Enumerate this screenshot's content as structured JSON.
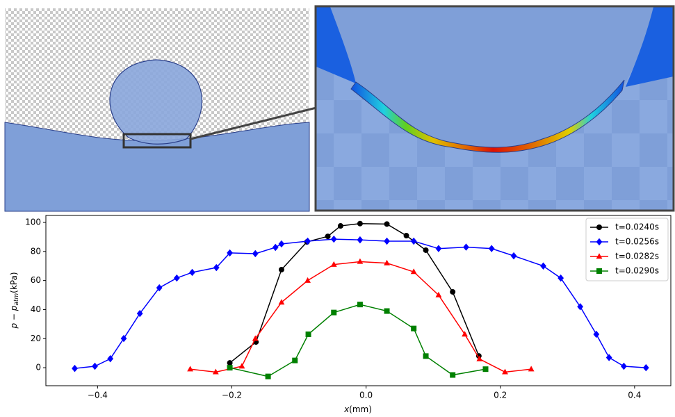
{
  "chart_data": {
    "type": "line",
    "xlabel_parts": [
      "x",
      "(mm)"
    ],
    "ylabel_parts": [
      "p − p",
      "atm",
      "(kPa)"
    ],
    "xlim": [
      -0.477,
      0.454
    ],
    "ylim": [
      -12.4,
      104.8
    ],
    "xticks": [
      {
        "value": -0.4,
        "label": "−0.4"
      },
      {
        "value": -0.2,
        "label": "−0.2"
      },
      {
        "value": 0,
        "label": "0.0"
      },
      0.2,
      0.4
    ],
    "yticks": [
      0,
      20,
      40,
      60,
      80,
      100
    ],
    "legend": "upper right",
    "series": [
      {
        "name": "t=0.0240s",
        "color": "#000000",
        "marker": "circle",
        "x": [
          -0.203,
          -0.164,
          -0.126,
          -0.088,
          -0.057,
          -0.038,
          -0.009,
          0.031,
          0.06,
          0.089,
          0.129,
          0.168
        ],
        "values": [
          3.3,
          17.7,
          67.5,
          86.6,
          90.4,
          97.6,
          99.2,
          98.9,
          90.9,
          80.9,
          52.2,
          8.1
        ]
      },
      {
        "name": "t=0.0256s",
        "color": "#0000ff",
        "marker": "diamond",
        "x": [
          -0.434,
          -0.404,
          -0.381,
          -0.361,
          -0.337,
          -0.308,
          -0.282,
          -0.259,
          -0.223,
          -0.203,
          -0.165,
          -0.135,
          -0.126,
          -0.087,
          -0.048,
          -0.009,
          0.031,
          0.071,
          0.108,
          0.149,
          0.187,
          0.22,
          0.264,
          0.29,
          0.319,
          0.343,
          0.362,
          0.384,
          0.417
        ],
        "values": [
          -0.5,
          1,
          6.2,
          20.1,
          37.3,
          55,
          61.7,
          65.6,
          68.9,
          79,
          78.5,
          82.8,
          85.2,
          87.1,
          88.5,
          88,
          87.1,
          87.1,
          82,
          83,
          82,
          77,
          70,
          61.7,
          42,
          23,
          7,
          1,
          0
        ]
      },
      {
        "name": "t=0.0282s",
        "color": "#ff0000",
        "marker": "triangle",
        "x": [
          -0.262,
          -0.224,
          -0.185,
          -0.165,
          -0.126,
          -0.087,
          -0.048,
          -0.009,
          0.031,
          0.071,
          0.108,
          0.147,
          0.169,
          0.207,
          0.246
        ],
        "values": [
          -1,
          -3,
          1,
          20,
          45,
          60,
          71,
          73,
          72,
          66,
          50,
          23,
          6,
          -3,
          -1
        ]
      },
      {
        "name": "t=0.0290s",
        "color": "#008000",
        "marker": "square",
        "x": [
          -0.203,
          -0.146,
          -0.106,
          -0.086,
          -0.048,
          -0.009,
          0.031,
          0.071,
          0.089,
          0.129,
          0.178
        ],
        "values": [
          0,
          -6,
          5,
          23,
          38,
          43.5,
          39,
          27,
          8,
          -5,
          -1
        ]
      }
    ]
  }
}
